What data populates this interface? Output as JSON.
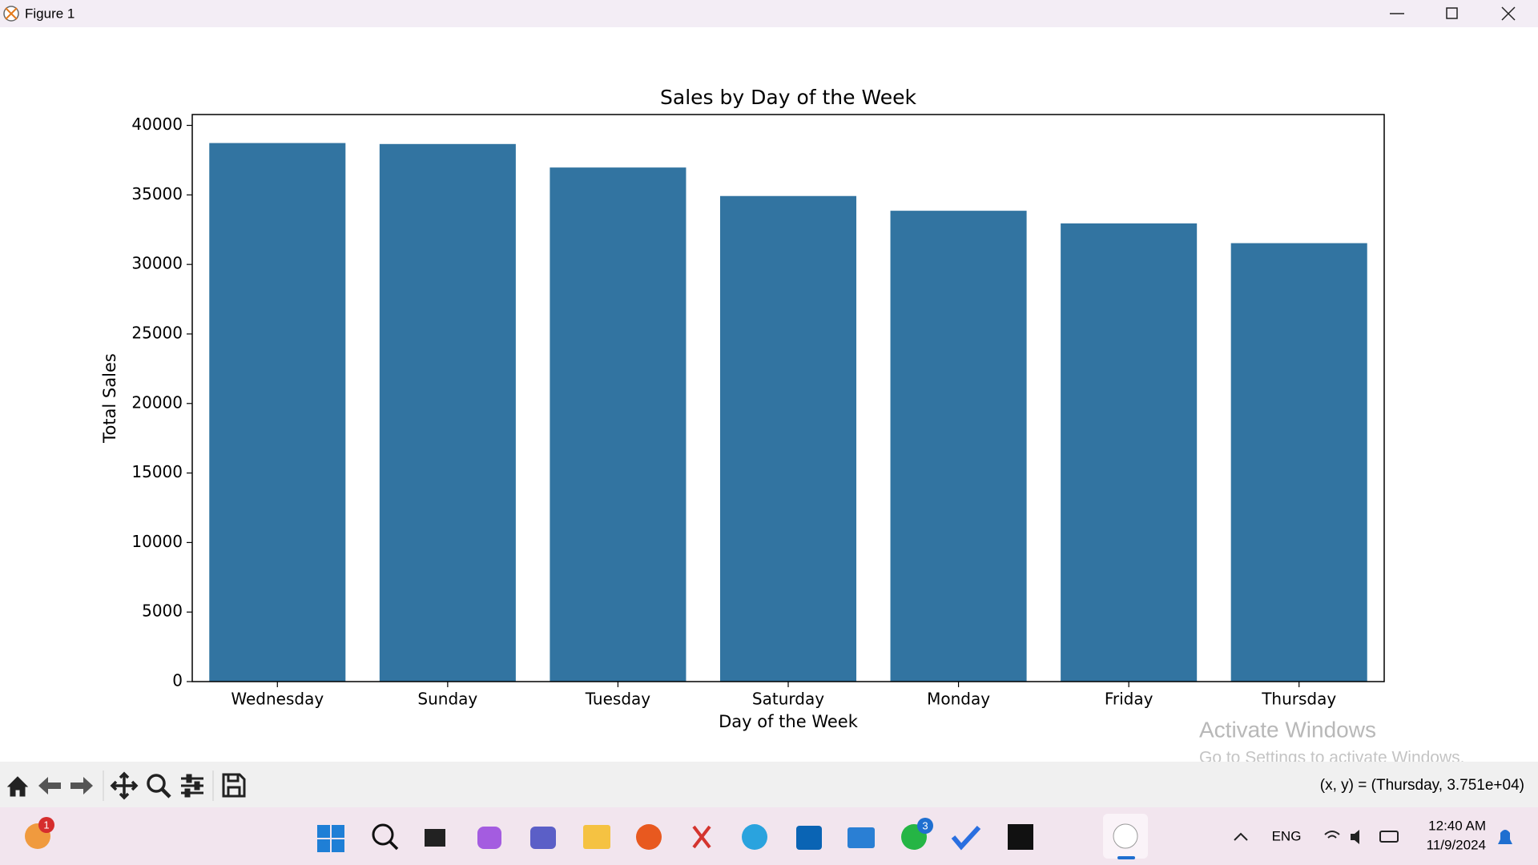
{
  "window": {
    "title": "Figure 1"
  },
  "chart_data": {
    "type": "bar",
    "title": "Sales by Day of the Week",
    "x_label": "Day of the Week",
    "y_label": "Total Sales",
    "categories": [
      "Wednesday",
      "Sunday",
      "Tuesday",
      "Saturday",
      "Monday",
      "Friday",
      "Thursday"
    ],
    "values": [
      38730,
      38660,
      36970,
      34920,
      33860,
      32950,
      31530
    ],
    "color": "#3274a1",
    "ylim": [
      0,
      40780
    ],
    "yticks": [
      0,
      5000,
      10000,
      15000,
      20000,
      25000,
      30000,
      35000,
      40000
    ]
  },
  "status": "(x, y) = (Thursday, 3.751e+04)",
  "watermark": {
    "title": "Activate Windows",
    "subtitle": "Go to Settings to activate Windows."
  },
  "taskbar": {
    "language": "ENG",
    "time": "12:40 AM",
    "date": "11/9/2024",
    "badges": [
      1,
      3
    ]
  }
}
